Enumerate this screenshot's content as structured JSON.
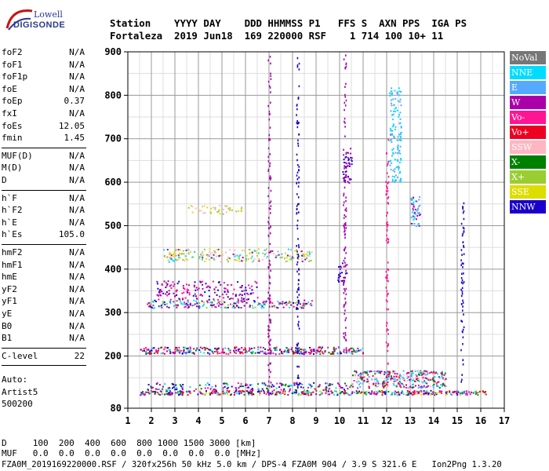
{
  "logo": {
    "line1": "Lowell",
    "line2": "DIGISONDE"
  },
  "header": {
    "line1": "Station    YYYY DAY    DDD HHMMSS P1   FFS S  AXN PPS  IGA PS",
    "line2": "Fortaleza  2019 Jun18  169 220000 RSF    1 714 100 10+ 11"
  },
  "side_groups": [
    [
      [
        "foF2",
        "N/A"
      ],
      [
        "foF1",
        "N/A"
      ],
      [
        "foF1p",
        "N/A"
      ],
      [
        "foE",
        "N/A"
      ],
      [
        "foEp",
        "0.37"
      ],
      [
        "fxI",
        "N/A"
      ],
      [
        "foEs",
        "12.05"
      ],
      [
        "fmin",
        "1.45"
      ]
    ],
    [
      [
        "MUF(D)",
        "N/A"
      ],
      [
        "M(D)",
        "N/A"
      ],
      [
        "D",
        "N/A"
      ]
    ],
    [
      [
        "h`F",
        "N/A"
      ],
      [
        "h`F2",
        "N/A"
      ],
      [
        "h`E",
        "N/A"
      ],
      [
        "h`Es",
        "105.0"
      ]
    ],
    [
      [
        "hmF2",
        "N/A"
      ],
      [
        "hmF1",
        "N/A"
      ],
      [
        "hmE",
        "N/A"
      ],
      [
        "yF2",
        "N/A"
      ],
      [
        "yF1",
        "N/A"
      ],
      [
        "yE",
        "N/A"
      ],
      [
        "B0",
        "N/A"
      ],
      [
        "B1",
        "N/A"
      ]
    ],
    [
      [
        "C-level",
        "22"
      ]
    ]
  ],
  "auto": [
    "Auto:",
    "Artist5",
    "500200"
  ],
  "bottom": {
    "line1": "D     100  200  400  600  800 1000 1500 3000 [km]",
    "line2": "MUF   0.0  0.0  0.0  0.0  0.0  0.0  0.0  0.0 [MHz]"
  },
  "footer": "FZA0M_2019169220000.RSF / 320fx256h 50 kHz 5.0 km / DPS-4 FZA0M 904 / 3.9 S 321.6 E   Ion2Png 1.3.20",
  "legend": [
    {
      "label": "NoVal",
      "color": "#777777",
      "text": "#ffffff"
    },
    {
      "label": "NNE",
      "color": "#00dcff",
      "text": "#ffffff"
    },
    {
      "label": "E",
      "color": "#55aaff",
      "text": "#ffffff"
    },
    {
      "label": "W",
      "color": "#aa00aa",
      "text": "#ffffff"
    },
    {
      "label": "Vo-",
      "color": "#ff1493",
      "text": "#ffffff"
    },
    {
      "label": "Vo+",
      "color": "#ee0022",
      "text": "#ffffff"
    },
    {
      "label": "SSW",
      "color": "#ffb6c1",
      "text": "#ffffff"
    },
    {
      "label": "X-",
      "color": "#008000",
      "text": "#ffffff"
    },
    {
      "label": "X+",
      "color": "#9acd32",
      "text": "#ffffff"
    },
    {
      "label": "SSE",
      "color": "#dddd00",
      "text": "#ffffff"
    },
    {
      "label": "NNW",
      "color": "#1a00cc",
      "text": "#ffffff"
    }
  ],
  "chart_data": {
    "type": "scatter",
    "xlim": [
      1,
      17
    ],
    "ylim": [
      80,
      900
    ],
    "x_ticks": [
      1,
      2,
      3,
      4,
      5,
      6,
      7,
      8,
      9,
      10,
      11,
      12,
      13,
      14,
      15,
      16,
      17
    ],
    "y_ticks": [
      80,
      200,
      300,
      400,
      500,
      600,
      700,
      800,
      900
    ],
    "grid": true,
    "clusters": [
      {
        "x": [
          1.5,
          16.2
        ],
        "y": [
          112,
          122
        ],
        "colors": [
          "#aa00aa",
          "#1a00cc",
          "#008000",
          "#ff1493",
          "#dddd00",
          "#ee0022",
          "#00dcff"
        ],
        "density": 1.0
      },
      {
        "x": [
          1.8,
          10.5
        ],
        "y": [
          123,
          140
        ],
        "colors": [
          "#aa00aa",
          "#1a00cc",
          "#008000",
          "#ff1493",
          "#00dcff"
        ],
        "density": 0.35
      },
      {
        "x": [
          10.5,
          14.5
        ],
        "y": [
          128,
          168
        ],
        "colors": [
          "#aa00aa",
          "#ff1493",
          "#ee0022",
          "#00dcff",
          "#55aaff",
          "#008000",
          "#ffb6c1"
        ],
        "density": 0.6
      },
      {
        "x": [
          1.5,
          11
        ],
        "y": [
          206,
          222
        ],
        "colors": [
          "#ee0022",
          "#aa00aa",
          "#1a00cc",
          "#008000",
          "#00dcff",
          "#ff1493"
        ],
        "density": 0.7
      },
      {
        "x": [
          1.8,
          8.8
        ],
        "y": [
          312,
          330
        ],
        "colors": [
          "#1a00cc",
          "#aa00aa",
          "#00dcff",
          "#9acd32",
          "#ff1493"
        ],
        "density": 0.5
      },
      {
        "x": [
          2.2,
          6.5
        ],
        "y": [
          330,
          375
        ],
        "colors": [
          "#1a00cc",
          "#aa00aa",
          "#ff1493"
        ],
        "density": 0.25
      },
      {
        "x": [
          2.5,
          8.8
        ],
        "y": [
          418,
          448
        ],
        "colors": [
          "#dddd00",
          "#9acd32",
          "#aa00aa",
          "#00dcff",
          "#ffb6c1"
        ],
        "density": 0.35
      },
      {
        "x": [
          3.5,
          6
        ],
        "y": [
          528,
          548
        ],
        "colors": [
          "#dddd00",
          "#9acd32",
          "#ffb6c1"
        ],
        "density": 0.25
      },
      {
        "x": [
          12.1,
          12.6
        ],
        "y": [
          600,
          820
        ],
        "colors": [
          "#00dcff",
          "#55aaff"
        ],
        "density": 0.35
      },
      {
        "x": [
          13.0,
          13.4
        ],
        "y": [
          500,
          570
        ],
        "colors": [
          "#00dcff",
          "#55aaff",
          "#aa00aa"
        ],
        "density": 0.5
      },
      {
        "x": [
          10.1,
          10.5
        ],
        "y": [
          600,
          680
        ],
        "colors": [
          "#1a00cc",
          "#aa00aa"
        ],
        "density": 0.4
      },
      {
        "x": [
          9.9,
          10.3
        ],
        "y": [
          370,
          420
        ],
        "colors": [
          "#1a00cc",
          "#aa00aa"
        ],
        "density": 0.35
      }
    ],
    "vertical_traces": [
      {
        "x": 7.0,
        "y": [
          110,
          900
        ],
        "color": "#aa00aa"
      },
      {
        "x": 8.2,
        "y": [
          110,
          900
        ],
        "color": "#1a00cc"
      },
      {
        "x": 10.2,
        "y": [
          200,
          900
        ],
        "color": "#aa00aa"
      },
      {
        "x": 12.0,
        "y": [
          150,
          700
        ],
        "color": "#ff1493"
      },
      {
        "x": 15.2,
        "y": [
          130,
          560
        ],
        "color": "#1a00cc"
      }
    ]
  }
}
